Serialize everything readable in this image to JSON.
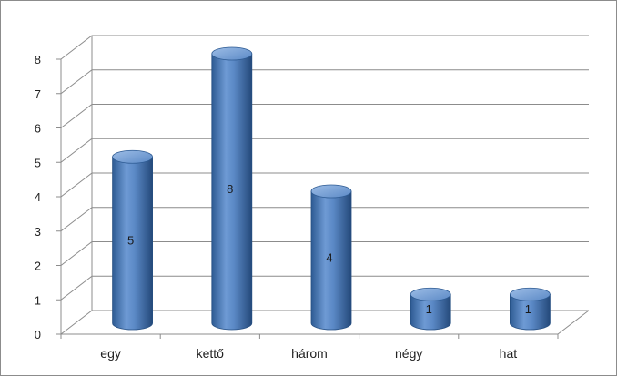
{
  "chart_data": {
    "type": "bar",
    "style": "3d-cylinder",
    "categories": [
      "egy",
      "kettő",
      "három",
      "négy",
      "hat"
    ],
    "values": [
      5,
      8,
      4,
      1,
      1
    ],
    "data_labels": [
      "5",
      "8",
      "4",
      "1",
      "1"
    ],
    "ylim": [
      0,
      8
    ],
    "yticks": [
      "0",
      "1",
      "2",
      "3",
      "4",
      "5",
      "6",
      "7",
      "8"
    ],
    "grid": true,
    "legend": "none",
    "colors": {
      "bar": "#4a7ebb",
      "bar_dark": "#2e5b93",
      "bar_light": "#8fb3e0",
      "grid": "#8c8c8c"
    }
  }
}
